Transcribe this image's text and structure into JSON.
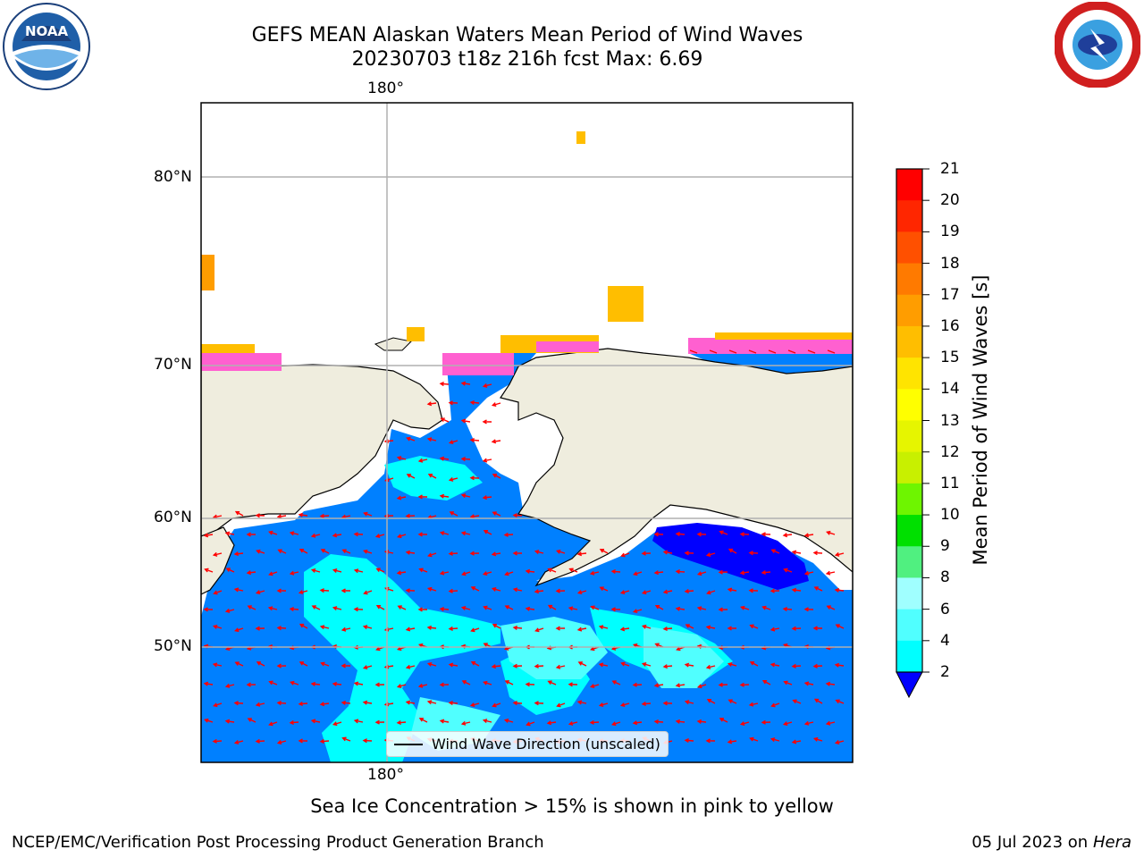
{
  "title": {
    "line1": "GEFS MEAN Alaskan Waters Mean Period of Wind Waves",
    "line2": "20230703 t18z 216h fcst   Max: 6.69"
  },
  "logos": {
    "left_text": "NOAA",
    "left_icon": "noaa-logo",
    "right_icon": "nws-logo"
  },
  "map": {
    "lon_top": "180°",
    "lon_bottom": "180°",
    "lat_labels": [
      "80°N",
      "70°N",
      "60°N",
      "50°N"
    ]
  },
  "legend": {
    "label": "Wind Wave Direction (unscaled)"
  },
  "colorbar": {
    "label": "Mean Period of Wind Waves [s]",
    "ticks": [
      "21",
      "20",
      "19",
      "18",
      "17",
      "16",
      "15",
      "14",
      "13",
      "12",
      "11",
      "10",
      "9",
      "8",
      "6",
      "4",
      "2"
    ],
    "colors": [
      "#ff0000",
      "#ff2600",
      "#ff5000",
      "#ff7a00",
      "#ff9d00",
      "#ffbe00",
      "#ffe400",
      "#ffff00",
      "#e6f500",
      "#c8f000",
      "#6ef500",
      "#00e000",
      "#50f080",
      "#a0ffff",
      "#50ffff",
      "#00ffff",
      "#0080ff"
    ],
    "under_color": "#0000ff"
  },
  "footer": {
    "note": "Sea Ice Concentration > 15% is shown in pink to yellow",
    "left": "NCEP/EMC/Verification Post Processing Product Generation Branch",
    "right_date": "05 Jul 2023 on ",
    "right_host": "Hera"
  }
}
